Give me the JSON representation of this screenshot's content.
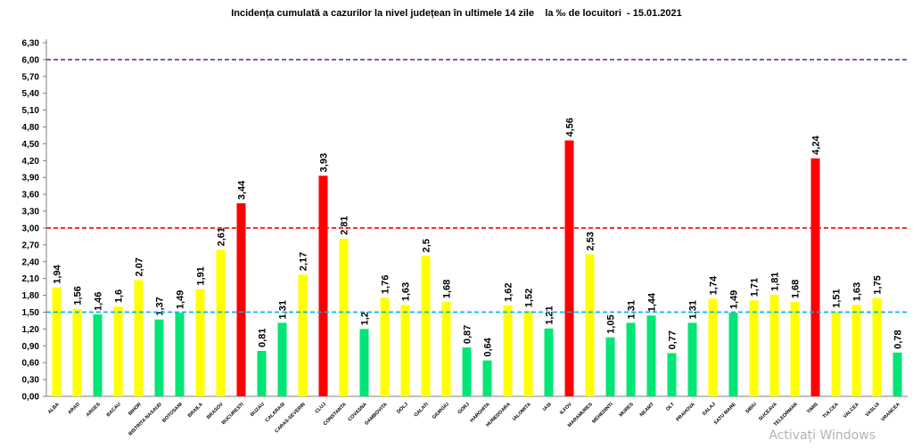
{
  "chart_data": {
    "type": "bar",
    "title": "Incidența cumulată a cazurilor la nivel județean în ultimele 14 zile    la ‰ de locuitori  - 15.01.2021",
    "xlabel": "",
    "ylabel": "",
    "ylim": [
      0,
      6.3
    ],
    "yticks": [
      "0,00",
      "0,30",
      "0,60",
      "0,90",
      "1,20",
      "1,50",
      "1,80",
      "2,10",
      "2,40",
      "2,70",
      "3,00",
      "3,30",
      "3,60",
      "3,90",
      "4,20",
      "4,50",
      "4,80",
      "5,10",
      "5,40",
      "5,70",
      "6,00",
      "6,30"
    ],
    "grid": false,
    "legend": "none",
    "categories": [
      "ALBA",
      "ARAD",
      "ARGES",
      "BACAU",
      "BIHOR",
      "BISTRITA NASAUD",
      "BOTOSANI",
      "BRAILA",
      "BRASOV",
      "BUCURESTI",
      "BUZAU",
      "CALARASI",
      "CARAS-SEVERIN",
      "CLUJ",
      "CONSTANTA",
      "COVASNA",
      "DAMBOVITA",
      "DOLJ",
      "GALATI",
      "GIURGIU",
      "GORJ",
      "HARGHITA",
      "HUNEDOARA",
      "IALOMITA",
      "IASI",
      "ILFOV",
      "MARAMURES",
      "MEHEDINTI",
      "MURES",
      "NEAMT",
      "OLT",
      "PRAHOVA",
      "SALAJ",
      "SATU MARE",
      "SIBIU",
      "SUCEAVA",
      "TELEORMAN",
      "TIMIS",
      "TULCEA",
      "VALCEA",
      "VASLUI",
      "VRANCEA"
    ],
    "values": [
      1.94,
      1.56,
      1.46,
      1.6,
      2.07,
      1.37,
      1.49,
      1.91,
      2.61,
      3.44,
      0.81,
      1.31,
      2.17,
      3.93,
      2.81,
      1.2,
      1.76,
      1.63,
      2.5,
      1.68,
      0.87,
      0.64,
      1.62,
      1.52,
      1.21,
      4.56,
      2.53,
      1.05,
      1.31,
      1.44,
      0.77,
      1.31,
      1.74,
      1.49,
      1.71,
      1.81,
      1.68,
      4.24,
      1.51,
      1.63,
      1.75,
      0.78
    ],
    "value_labels": [
      "1,94",
      "1,56",
      "1,46",
      "1,6",
      "2,07",
      "1,37",
      "1,49",
      "1,91",
      "2,61",
      "3,44",
      "0,81",
      "1,31",
      "2,17",
      "3,93",
      "2,81",
      "1,2",
      "1,76",
      "1,63",
      "2,5",
      "1,68",
      "0,87",
      "0,64",
      "1,62",
      "1,52",
      "1,21",
      "4,56",
      "2,53",
      "1,05",
      "1,31",
      "1,44",
      "0,77",
      "1,31",
      "1,74",
      "1,49",
      "1,71",
      "1,81",
      "1,68",
      "4,24",
      "1,51",
      "1,63",
      "1,75",
      "0,78"
    ],
    "reference_lines": [
      {
        "value": 1.5,
        "color": "#00b0f0"
      },
      {
        "value": 3.0,
        "color": "#ff0000"
      },
      {
        "value": 6.0,
        "color": "#7030a0"
      }
    ],
    "colors": {
      "green": "#00e676",
      "yellow": "#ffff00",
      "red": "#ff0000"
    }
  },
  "watermark": "Activați Windows"
}
